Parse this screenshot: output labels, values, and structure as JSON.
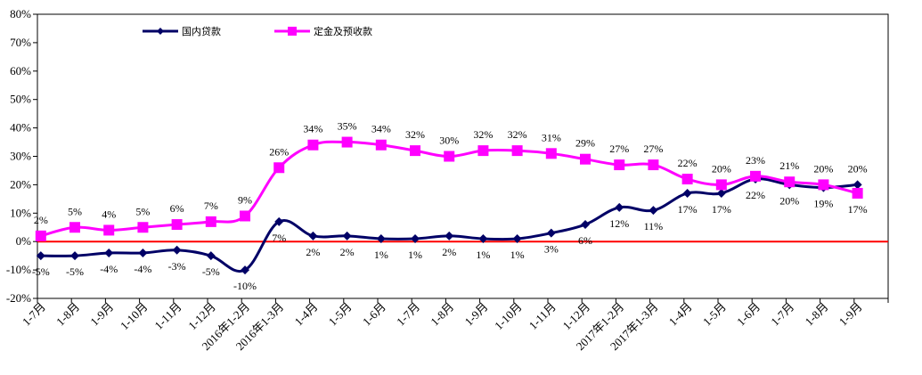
{
  "chart_data": {
    "type": "line",
    "categories": [
      "1-7月",
      "1-8月",
      "1-9月",
      "1-10月",
      "1-11月",
      "1-12月",
      "2016年1-2月",
      "2016年1-3月",
      "1-4月",
      "1-5月",
      "1-6月",
      "1-7月",
      "1-8月",
      "1-9月",
      "1-10月",
      "1-11月",
      "1-12月",
      "2017年1-2月",
      "2017年1-3月",
      "1-4月",
      "1-5月",
      "1-6月",
      "1-7月",
      "1-8月",
      "1-9月"
    ],
    "series": [
      {
        "name": "国内贷款",
        "color": "#000066",
        "marker": "diamond",
        "values": [
          -5,
          -5,
          -4,
          -4,
          -3,
          -5,
          -10,
          7,
          2,
          2,
          1,
          1,
          2,
          1,
          1,
          3,
          6,
          12,
          11,
          17,
          17,
          22,
          20,
          19,
          20
        ],
        "labels": [
          "-5%",
          "-5%",
          "-4%",
          "-4%",
          "-3%",
          "-5%",
          "-10%",
          "7%",
          "2%",
          "2%",
          "1%",
          "1%",
          "2%",
          "1%",
          "1%",
          "3%",
          "6%",
          "12%",
          "11%",
          "17%",
          "17%",
          "22%",
          "20%",
          "19%",
          "20%"
        ]
      },
      {
        "name": "定金及预收款",
        "color": "#ff00ff",
        "marker": "square",
        "values": [
          2,
          5,
          4,
          5,
          6,
          7,
          9,
          26,
          34,
          35,
          34,
          32,
          30,
          32,
          32,
          31,
          29,
          27,
          27,
          22,
          20,
          23,
          21,
          20,
          17
        ],
        "labels": [
          "2%",
          "5%",
          "4%",
          "5%",
          "6%",
          "7%",
          "9%",
          "26%",
          "34%",
          "35%",
          "34%",
          "32%",
          "30%",
          "32%",
          "32%",
          "31%",
          "29%",
          "27%",
          "27%",
          "22%",
          "20%",
          "23%",
          "21%",
          "20%",
          "17%"
        ]
      }
    ],
    "ylim": [
      -20,
      80
    ],
    "yticks": [
      -20,
      -10,
      0,
      10,
      20,
      30,
      40,
      50,
      60,
      70,
      80
    ],
    "ytick_labels": [
      "-20%",
      "-10%",
      "0%",
      "10%",
      "20%",
      "30%",
      "40%",
      "50%",
      "60%",
      "70%",
      "80%"
    ],
    "zero_line_color": "#ff0000",
    "grid": false,
    "legend_position": "top-left",
    "title": "",
    "xlabel": "",
    "ylabel": ""
  }
}
